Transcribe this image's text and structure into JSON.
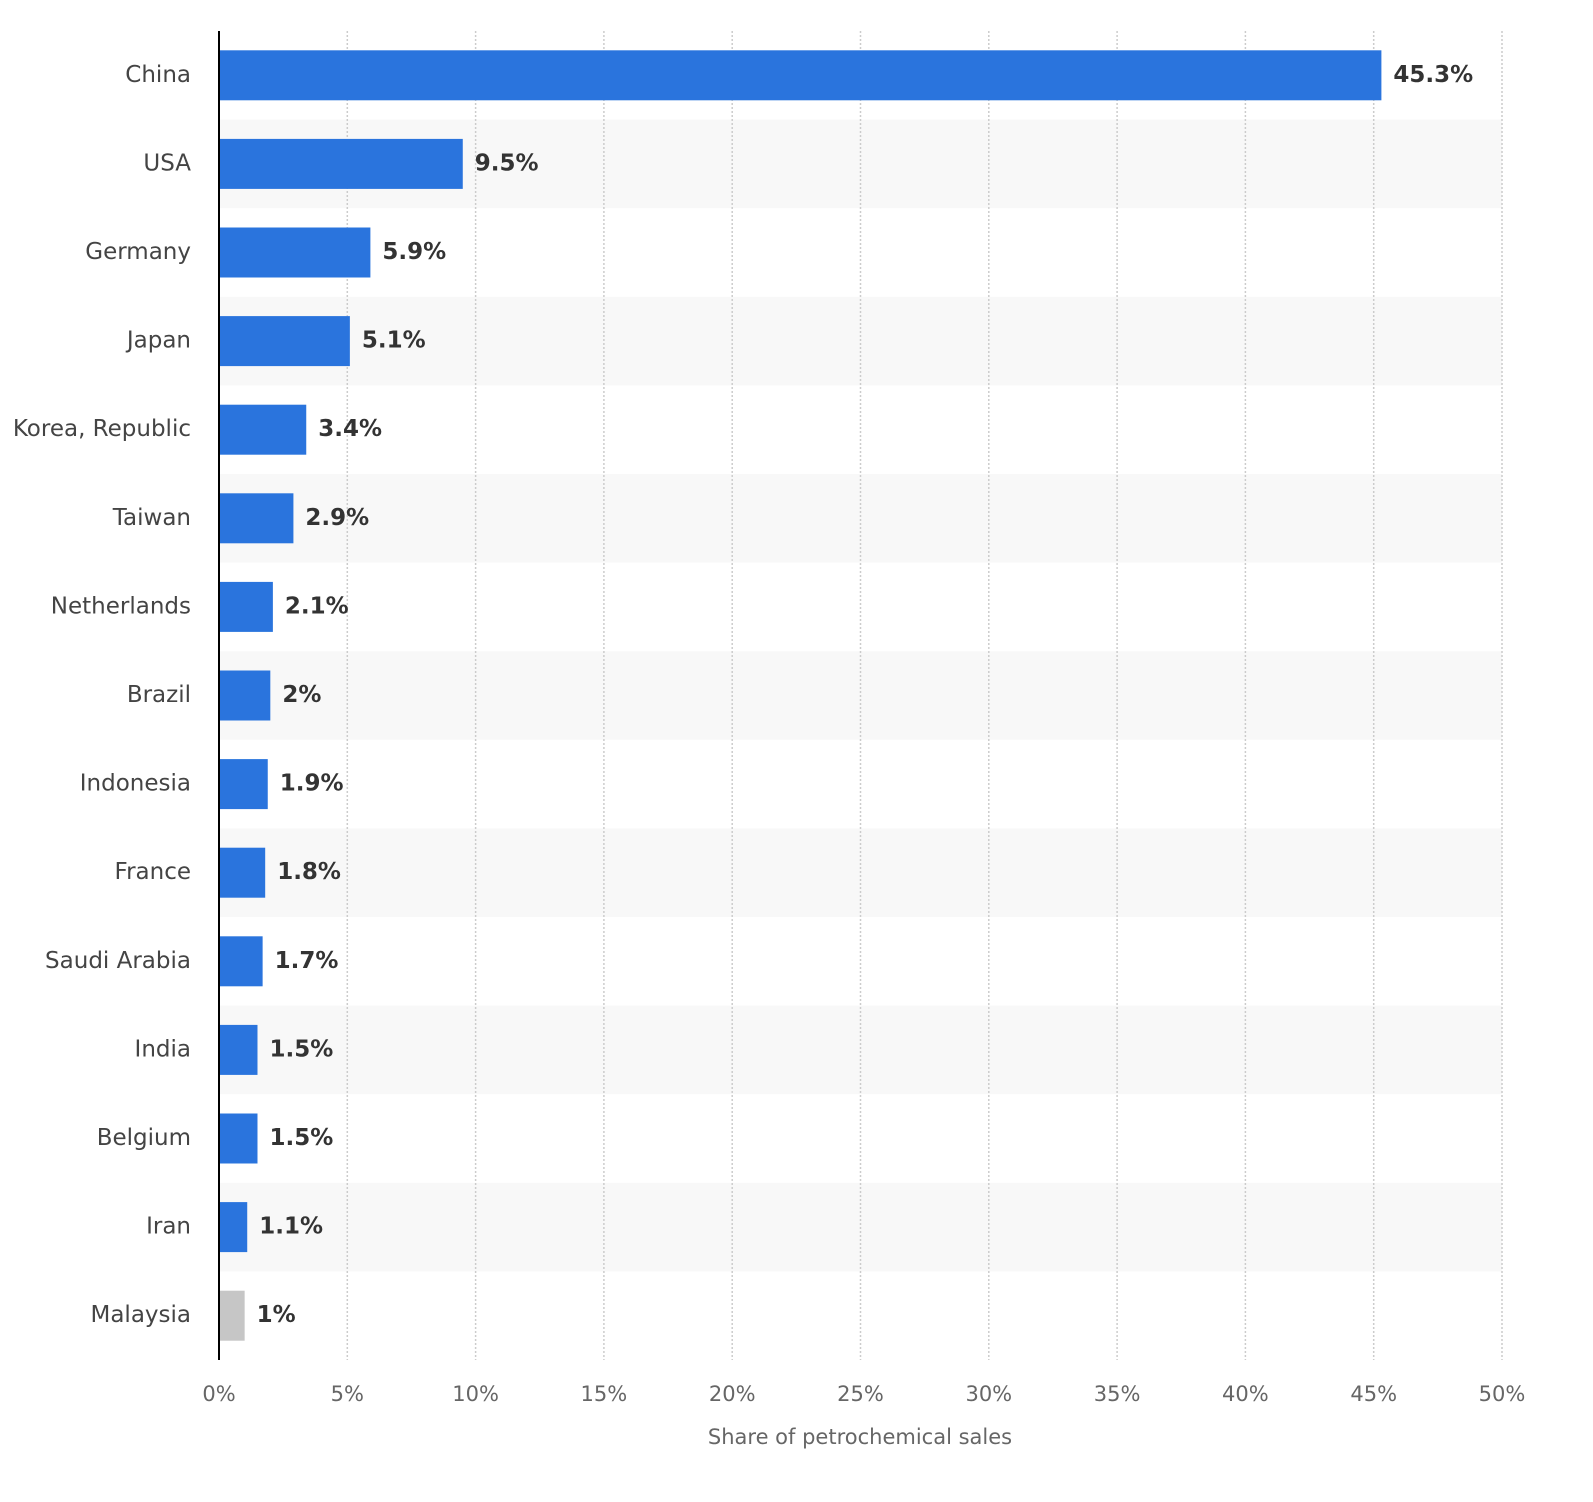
{
  "chart_data": {
    "type": "bar",
    "orientation": "horizontal",
    "x_label": "Share of petrochemical sales",
    "categories": [
      "China",
      "USA",
      "Germany",
      "Japan",
      "Korea, Republic",
      "Taiwan",
      "Netherlands",
      "Brazil",
      "Indonesia",
      "France",
      "Saudi Arabia",
      "India",
      "Belgium",
      "Iran",
      "Malaysia"
    ],
    "values": [
      45.3,
      9.5,
      5.9,
      5.1,
      3.4,
      2.9,
      2.1,
      2,
      1.9,
      1.8,
      1.7,
      1.5,
      1.5,
      1.1,
      1
    ],
    "value_labels": [
      "45.3%",
      "9.5%",
      "5.9%",
      "5.1%",
      "3.4%",
      "2.9%",
      "2.1%",
      "2%",
      "1.9%",
      "1.8%",
      "1.7%",
      "1.5%",
      "1.5%",
      "1.1%",
      "1%"
    ],
    "colors": [
      "#2a74dd",
      "#2a74dd",
      "#2a74dd",
      "#2a74dd",
      "#2a74dd",
      "#2a74dd",
      "#2a74dd",
      "#2a74dd",
      "#2a74dd",
      "#2a74dd",
      "#2a74dd",
      "#2a74dd",
      "#2a74dd",
      "#2a74dd",
      "#c6c6c6"
    ],
    "xlim": [
      0,
      50
    ],
    "xticks": [
      {
        "value": 0,
        "label": "0%"
      },
      {
        "value": 5,
        "label": "5%"
      },
      {
        "value": 10,
        "label": "10%"
      },
      {
        "value": 15,
        "label": "15%"
      },
      {
        "value": 20,
        "label": "20%"
      },
      {
        "value": 25,
        "label": "25%"
      },
      {
        "value": 30,
        "label": "30%"
      },
      {
        "value": 35,
        "label": "35%"
      },
      {
        "value": 40,
        "label": "40%"
      },
      {
        "value": 45,
        "label": "45%"
      },
      {
        "value": 50,
        "label": "50%"
      }
    ],
    "grid": true
  }
}
